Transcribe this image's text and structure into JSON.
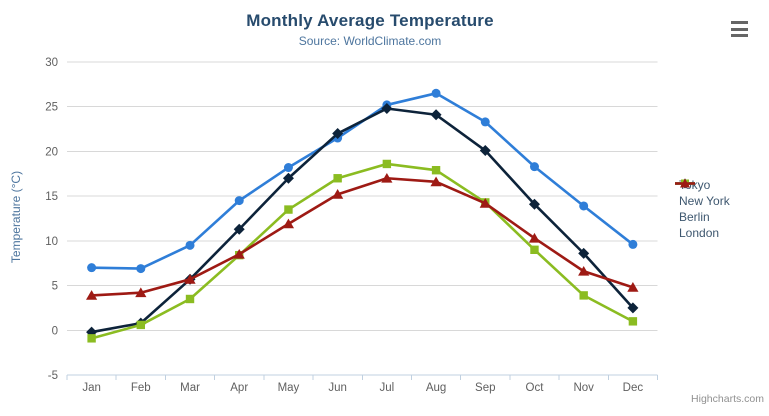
{
  "credits": "Highcharts.com",
  "menu": {
    "icon": "hamburger-menu-icon"
  },
  "chart_data": {
    "type": "line",
    "title": "Monthly Average Temperature",
    "subtitle": "Source: WorldClimate.com",
    "xlabel": "",
    "ylabel": "Temperature (°C)",
    "ylim": [
      -5,
      30
    ],
    "ytick_step": 5,
    "grid": true,
    "legend_position": "right",
    "categories": [
      "Jan",
      "Feb",
      "Mar",
      "Apr",
      "May",
      "Jun",
      "Jul",
      "Aug",
      "Sep",
      "Oct",
      "Nov",
      "Dec"
    ],
    "series": [
      {
        "name": "Tokyo",
        "color": "#2f7ed8",
        "marker": "circle",
        "values": [
          7.0,
          6.9,
          9.5,
          14.5,
          18.2,
          21.5,
          25.2,
          26.5,
          23.3,
          18.3,
          13.9,
          9.6
        ]
      },
      {
        "name": "New York",
        "color": "#0d233a",
        "marker": "diamond",
        "values": [
          -0.2,
          0.8,
          5.7,
          11.3,
          17.0,
          22.0,
          24.8,
          24.1,
          20.1,
          14.1,
          8.6,
          2.5
        ]
      },
      {
        "name": "Berlin",
        "color": "#8bbc21",
        "marker": "square",
        "values": [
          -0.9,
          0.6,
          3.5,
          8.4,
          13.5,
          17.0,
          18.6,
          17.9,
          14.3,
          9.0,
          3.9,
          1.0
        ]
      },
      {
        "name": "London",
        "color": "#9e1a14",
        "marker": "triangle",
        "values": [
          3.9,
          4.2,
          5.7,
          8.5,
          11.9,
          15.2,
          17.0,
          16.6,
          14.2,
          10.3,
          6.6,
          4.8
        ]
      }
    ]
  }
}
